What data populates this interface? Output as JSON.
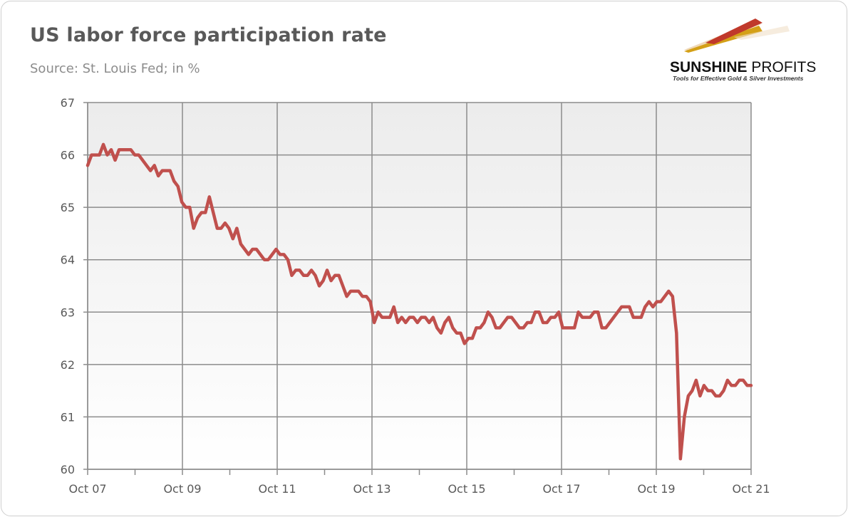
{
  "header": {
    "title": "US labor force participation rate",
    "subtitle": "Source: St. Louis Fed; in %"
  },
  "logo": {
    "brand_bold": "SUNSHINE",
    "brand_light": " PROFITS",
    "tagline": "Tools for Effective Gold & Silver Investments",
    "colors": {
      "red": "#c0392b",
      "gold": "#d4a017",
      "light": "#e8c79a"
    }
  },
  "chart_data": {
    "type": "line",
    "title": "US labor force participation rate",
    "subtitle": "Source: St. Louis Fed; in %",
    "xlabel": "",
    "ylabel": "",
    "ylim": [
      60,
      67
    ],
    "yticks": [
      "60",
      "61",
      "62",
      "63",
      "64",
      "65",
      "66",
      "67"
    ],
    "x_start": "Oct 07",
    "x_end": "Oct 21",
    "xtick_labels": [
      "Oct 07",
      "Oct 09",
      "Oct 11",
      "Oct 13",
      "Oct 15",
      "Oct 17",
      "Oct 19",
      "Oct 21"
    ],
    "grid": true,
    "legend": "none",
    "colors": {
      "line": "#c0504d",
      "grid": "#8c8c8c",
      "plot_bg_top": "#ececec",
      "plot_bg_bottom": "#ffffff"
    },
    "series": [
      {
        "values": [
          65.8,
          66.0,
          66.0,
          66.0,
          66.2,
          66.0,
          66.1,
          65.9,
          66.1,
          66.1,
          66.1,
          66.1,
          66.0,
          66.0,
          65.9,
          65.8,
          65.7,
          65.8,
          65.6,
          65.7,
          65.7,
          65.7,
          65.5,
          65.4,
          65.1,
          65.0,
          65.0,
          64.6,
          64.8,
          64.9,
          64.9,
          65.2,
          64.9,
          64.6,
          64.6,
          64.7,
          64.6,
          64.4,
          64.6,
          64.3,
          64.2,
          64.1,
          64.2,
          64.2,
          64.1,
          64.0,
          64.0,
          64.1,
          64.2,
          64.1,
          64.1,
          64.0,
          63.7,
          63.8,
          63.8,
          63.7,
          63.7,
          63.8,
          63.7,
          63.5,
          63.6,
          63.8,
          63.6,
          63.7,
          63.7,
          63.5,
          63.3,
          63.4,
          63.4,
          63.4,
          63.3,
          63.3,
          63.2,
          62.8,
          63.0,
          62.9,
          62.9,
          62.9,
          63.1,
          62.8,
          62.9,
          62.8,
          62.9,
          62.9,
          62.8,
          62.9,
          62.9,
          62.8,
          62.9,
          62.7,
          62.6,
          62.8,
          62.9,
          62.7,
          62.6,
          62.6,
          62.4,
          62.5,
          62.5,
          62.7,
          62.7,
          62.8,
          63.0,
          62.9,
          62.7,
          62.7,
          62.8,
          62.9,
          62.9,
          62.8,
          62.7,
          62.7,
          62.8,
          62.8,
          63.0,
          63.0,
          62.8,
          62.8,
          62.9,
          62.9,
          63.0,
          62.7,
          62.7,
          62.7,
          62.7,
          63.0,
          62.9,
          62.9,
          62.9,
          63.0,
          63.0,
          62.7,
          62.7,
          62.8,
          62.9,
          63.0,
          63.1,
          63.1,
          63.1,
          62.9,
          62.9,
          62.9,
          63.1,
          63.2,
          63.1,
          63.2,
          63.2,
          63.3,
          63.4,
          63.3,
          62.6,
          60.2,
          61.0,
          61.4,
          61.5,
          61.7,
          61.4,
          61.6,
          61.5,
          61.5,
          61.4,
          61.4,
          61.5,
          61.7,
          61.6,
          61.6,
          61.7,
          61.7,
          61.6,
          61.6
        ]
      }
    ]
  }
}
